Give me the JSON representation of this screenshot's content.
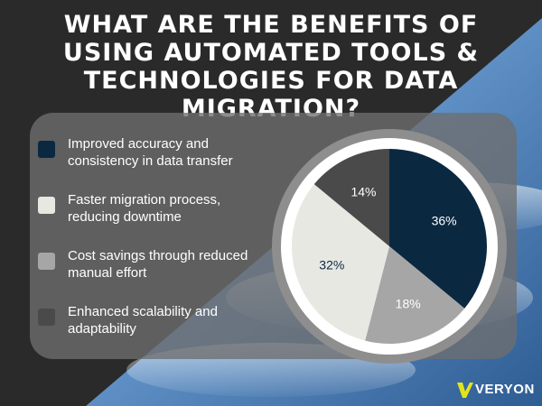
{
  "title": "WHAT ARE THE BENEFITS OF USING AUTOMATED TOOLS & TECHNOLOGIES FOR DATA MIGRATION?",
  "logo": {
    "text": "VERYON",
    "accent": "#e3e31c"
  },
  "legend": [
    {
      "label": "Improved accuracy and consistency in data transfer",
      "color": "#0b2841"
    },
    {
      "label": "Faster migration process, reducing downtime",
      "color": "#e8e8e3"
    },
    {
      "label": "Cost savings through reduced manual effort",
      "color": "#a6a6a6"
    },
    {
      "label": "Enhanced scalability and adaptability",
      "color": "#4a4a4a"
    }
  ],
  "chart_data": {
    "type": "pie",
    "title": "WHAT ARE THE BENEFITS OF USING AUTOMATED TOOLS & TECHNOLOGIES FOR DATA MIGRATION?",
    "categories": [
      "Improved accuracy and consistency in data transfer",
      "Cost savings through reduced manual effort",
      "Faster migration process, reducing downtime",
      "Enhanced scalability and adaptability"
    ],
    "values": [
      36,
      18,
      32,
      14
    ],
    "labels": [
      "36%",
      "18%",
      "32%",
      "14%"
    ],
    "colors": [
      "#0b2841",
      "#a6a6a6",
      "#e8e8e3",
      "#4a4a4a"
    ],
    "label_colors": [
      "#ffffff",
      "#ffffff",
      "#0b2841",
      "#ffffff"
    ],
    "legend_position": "left"
  }
}
